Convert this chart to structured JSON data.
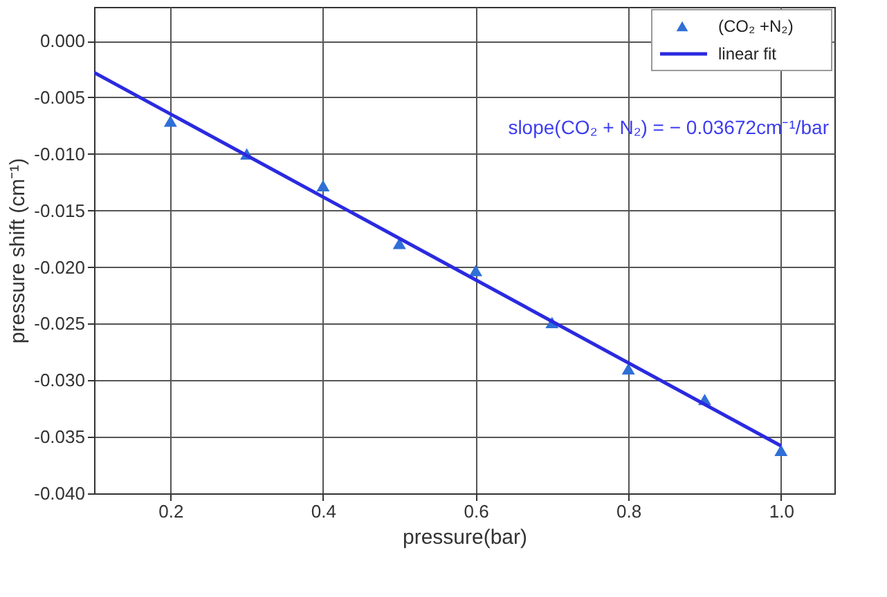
{
  "chart_data": {
    "type": "scatter",
    "xlabel": "pressure(bar)",
    "ylabel": "pressure shift (cm⁻¹)",
    "xlim": [
      0.1,
      1.07
    ],
    "ylim": [
      -0.04,
      0.003
    ],
    "xticks": [
      0.2,
      0.4,
      0.6,
      0.8,
      {
        "value": 1.0,
        "label": "1.0"
      }
    ],
    "yticks": [
      {
        "value": -0.04,
        "label": "-0.040"
      },
      {
        "value": -0.035,
        "label": "-0.035"
      },
      {
        "value": -0.03,
        "label": "-0.030"
      },
      {
        "value": -0.025,
        "label": "-0.025"
      },
      {
        "value": -0.02,
        "label": "-0.020"
      },
      {
        "value": -0.015,
        "label": "-0.015"
      },
      {
        "value": -0.01,
        "label": "-0.010"
      },
      {
        "value": -0.005,
        "label": "-0.005"
      },
      {
        "value": 0,
        "label": "0.000"
      }
    ],
    "grid": true,
    "legend": "top right",
    "annotations": [
      "slope(CO₂ + N₂) = − 0.03672cm⁻¹/bar"
    ],
    "series": [
      {
        "name": "(CO₂ +N₂)",
        "marker": "triangle",
        "color": "#2f6fd6",
        "x": [
          0.2,
          0.3,
          0.4,
          0.5,
          0.6,
          0.7,
          0.8,
          0.9,
          1.0
        ],
        "values": [
          -0.0071,
          -0.01,
          -0.0128,
          -0.0179,
          -0.0203,
          -0.0249,
          -0.029,
          -0.0317,
          -0.0362
        ]
      },
      {
        "name": "linear fit",
        "type": "line",
        "line_style": "solid",
        "color": "#2a2ae0",
        "x": [
          0.1,
          1.0
        ],
        "values": [
          -0.0028,
          -0.0358
        ]
      }
    ]
  }
}
